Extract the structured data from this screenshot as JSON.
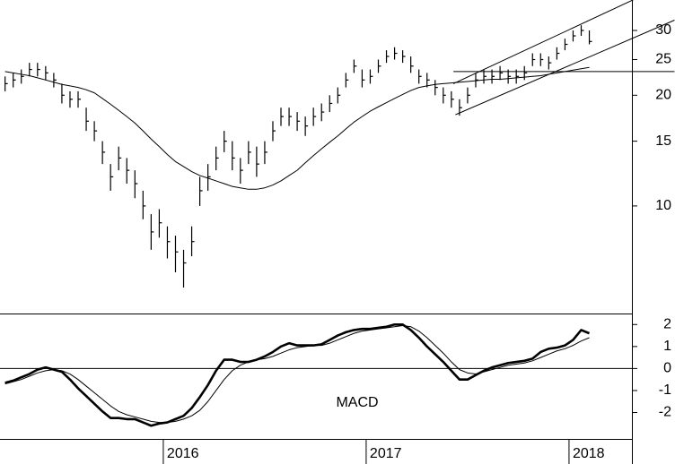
{
  "chart_data": [
    {
      "type": "ohlc",
      "color": "#000000",
      "log_scale": true,
      "xlim": [
        2015.195,
        2018.31
      ],
      "ylim": [
        5.1,
        36.3
      ],
      "yticks": [
        10,
        15,
        20,
        25,
        30
      ],
      "x": [
        2015.22,
        2015.26,
        2015.3,
        2015.34,
        2015.38,
        2015.42,
        2015.46,
        2015.5,
        2015.54,
        2015.58,
        2015.62,
        2015.66,
        2015.7,
        2015.74,
        2015.78,
        2015.82,
        2015.86,
        2015.9,
        2015.94,
        2015.98,
        2016.02,
        2016.06,
        2016.1,
        2016.14,
        2016.18,
        2016.22,
        2016.26,
        2016.3,
        2016.34,
        2016.38,
        2016.42,
        2016.46,
        2016.5,
        2016.54,
        2016.58,
        2016.62,
        2016.66,
        2016.7,
        2016.74,
        2016.78,
        2016.82,
        2016.86,
        2016.9,
        2016.94,
        2016.98,
        2017.02,
        2017.06,
        2017.1,
        2017.14,
        2017.18,
        2017.22,
        2017.26,
        2017.3,
        2017.34,
        2017.38,
        2017.42,
        2017.46,
        2017.5,
        2017.54,
        2017.58,
        2017.62,
        2017.66,
        2017.7,
        2017.74,
        2017.78,
        2017.82,
        2017.86,
        2017.9,
        2017.94,
        2017.98,
        2018.02,
        2018.06,
        2018.1
      ],
      "high": [
        22.5,
        23,
        23.5,
        24.5,
        24.5,
        24,
        23,
        21.5,
        20.5,
        20.5,
        18.5,
        17,
        15,
        13,
        14.5,
        13.5,
        12.5,
        11,
        9.5,
        9.8,
        8.8,
        8.3,
        7.6,
        8.8,
        12,
        13,
        14.5,
        16,
        15,
        13.5,
        15,
        14.5,
        15,
        17,
        18.5,
        18.5,
        18,
        17.5,
        18.5,
        19,
        20,
        21,
        23,
        25,
        23.5,
        23.5,
        25,
        26.5,
        27,
        26.5,
        25.5,
        23.5,
        23,
        22,
        21,
        20.5,
        19.5,
        21,
        23,
        23.5,
        23.5,
        24,
        23.5,
        23.5,
        24,
        26,
        26,
        25.5,
        27,
        28.5,
        30,
        31,
        30
      ],
      "low": [
        20.5,
        21,
        21.5,
        22.5,
        22.5,
        22,
        21,
        19,
        18.5,
        18.5,
        16,
        15,
        13,
        11,
        12.5,
        11.5,
        10.5,
        9.2,
        7.6,
        8.2,
        7.2,
        6.6,
        6.0,
        7.3,
        10,
        11,
        12.5,
        14,
        12.5,
        11.5,
        13,
        12,
        13,
        15,
        16.5,
        16.5,
        16,
        15.5,
        16.5,
        17,
        18,
        19,
        21,
        23,
        21,
        21.5,
        23,
        24.5,
        25,
        24.5,
        23,
        21.5,
        21,
        20,
        19,
        18.5,
        17.6,
        19,
        21,
        21.5,
        21.5,
        22,
        21.5,
        21.5,
        22,
        24,
        24,
        23.5,
        25,
        26.5,
        28,
        29,
        27.5
      ],
      "close": [
        21.5,
        22,
        22.5,
        23.5,
        23.5,
        23,
        22,
        20,
        19.5,
        19.5,
        17,
        16,
        14,
        12,
        13.5,
        12.5,
        11.5,
        10,
        8.5,
        9,
        8,
        7.5,
        7,
        8,
        11,
        12,
        13.5,
        15,
        13.5,
        12.5,
        14,
        13,
        14,
        16,
        17.5,
        17.5,
        17,
        16.5,
        17.5,
        18,
        19,
        20,
        22,
        24,
        22,
        22.5,
        24,
        25.5,
        26,
        25.5,
        24,
        22.5,
        22,
        21,
        20,
        19.5,
        18.5,
        20,
        22,
        22.5,
        22.5,
        23,
        22.5,
        22.5,
        23,
        25,
        25,
        24.5,
        26,
        27.5,
        29,
        30,
        28
      ],
      "moving_average": [
        23.2,
        23.0,
        22.8,
        22.6,
        22.3,
        22,
        21.7,
        21.4,
        21.2,
        21,
        20.7,
        20.3,
        19.6,
        18.9,
        18.2,
        17.5,
        16.8,
        16,
        15.2,
        14.5,
        13.8,
        13.2,
        12.8,
        12.4,
        12.1,
        11.9,
        11.7,
        11.5,
        11.3,
        11.2,
        11.1,
        11.1,
        11.2,
        11.4,
        11.7,
        12.1,
        12.5,
        13.1,
        13.7,
        14.3,
        14.9,
        15.5,
        16.2,
        16.9,
        17.5,
        18.1,
        18.6,
        19.1,
        19.6,
        20.1,
        20.6,
        21,
        21.2,
        21.4,
        21.5,
        21.6,
        21.7,
        21.8,
        21.9,
        22,
        22.1,
        22.1,
        22.2,
        22.3,
        22.4,
        22.5,
        22.6,
        22.8,
        23,
        23.2,
        23.4,
        23.6,
        23.8
      ],
      "trendlines": [
        {
          "x": [
            2017.43,
            2018.52
          ],
          "y": [
            21.5,
            41.0
          ]
        },
        {
          "x": [
            2017.44,
            2018.52
          ],
          "y": [
            17.7,
            32.0
          ]
        },
        {
          "x": [
            2017.43,
            2018.52
          ],
          "y": [
            23.2,
            23.2
          ]
        }
      ]
    },
    {
      "type": "line",
      "annotation": "MACD",
      "color": "#000000",
      "xlim": [
        2015.195,
        2018.31
      ],
      "xticks": [
        2016,
        2017,
        2018
      ],
      "ylim": [
        -3.2,
        2.5
      ],
      "yticks": [
        -2,
        -1,
        0,
        1,
        2
      ],
      "reference_lines": [
        0
      ],
      "x": [
        2015.22,
        2015.26,
        2015.3,
        2015.34,
        2015.38,
        2015.42,
        2015.46,
        2015.5,
        2015.54,
        2015.58,
        2015.62,
        2015.66,
        2015.7,
        2015.74,
        2015.78,
        2015.82,
        2015.86,
        2015.9,
        2015.94,
        2015.98,
        2016.02,
        2016.06,
        2016.1,
        2016.14,
        2016.18,
        2016.22,
        2016.26,
        2016.3,
        2016.34,
        2016.38,
        2016.42,
        2016.46,
        2016.5,
        2016.54,
        2016.58,
        2016.62,
        2016.66,
        2016.7,
        2016.74,
        2016.78,
        2016.82,
        2016.86,
        2016.9,
        2016.94,
        2016.98,
        2017.02,
        2017.06,
        2017.1,
        2017.14,
        2017.18,
        2017.22,
        2017.26,
        2017.3,
        2017.34,
        2017.38,
        2017.42,
        2017.46,
        2017.5,
        2017.54,
        2017.58,
        2017.62,
        2017.66,
        2017.7,
        2017.74,
        2017.78,
        2017.82,
        2017.86,
        2017.9,
        2017.94,
        2017.98,
        2018.02,
        2018.06,
        2018.1
      ],
      "series": [
        {
          "width": 2.6,
          "values": [
            -0.65,
            -0.55,
            -0.4,
            -0.25,
            -0.05,
            0.05,
            -0.05,
            -0.15,
            -0.5,
            -0.9,
            -1.25,
            -1.6,
            -1.95,
            -2.25,
            -2.25,
            -2.3,
            -2.3,
            -2.45,
            -2.6,
            -2.5,
            -2.45,
            -2.3,
            -2.15,
            -1.8,
            -1.3,
            -0.75,
            -0.1,
            0.4,
            0.4,
            0.3,
            0.3,
            0.4,
            0.55,
            0.75,
            1.0,
            1.15,
            1.05,
            1.05,
            1.05,
            1.1,
            1.3,
            1.5,
            1.65,
            1.75,
            1.8,
            1.8,
            1.85,
            1.9,
            2.0,
            2.0,
            1.75,
            1.4,
            1.0,
            0.65,
            0.3,
            -0.1,
            -0.5,
            -0.5,
            -0.3,
            -0.1,
            0.05,
            0.15,
            0.25,
            0.3,
            0.35,
            0.45,
            0.75,
            0.9,
            0.95,
            1.05,
            1.3,
            1.75,
            1.6
          ]
        },
        {
          "width": 1,
          "values": [
            -0.7,
            -0.6,
            -0.5,
            -0.35,
            -0.2,
            -0.1,
            -0.05,
            -0.1,
            -0.25,
            -0.5,
            -0.8,
            -1.1,
            -1.4,
            -1.7,
            -1.95,
            -2.1,
            -2.2,
            -2.3,
            -2.4,
            -2.45,
            -2.45,
            -2.4,
            -2.3,
            -2.15,
            -1.9,
            -1.5,
            -1.0,
            -0.5,
            -0.1,
            0.15,
            0.3,
            0.4,
            0.45,
            0.55,
            0.7,
            0.85,
            0.95,
            1.0,
            1.05,
            1.05,
            1.15,
            1.3,
            1.45,
            1.6,
            1.7,
            1.75,
            1.8,
            1.85,
            1.9,
            1.95,
            1.9,
            1.7,
            1.4,
            1.05,
            0.7,
            0.3,
            -0.05,
            -0.2,
            -0.25,
            -0.15,
            -0.05,
            0.05,
            0.15,
            0.2,
            0.25,
            0.35,
            0.5,
            0.65,
            0.8,
            0.9,
            1.05,
            1.25,
            1.4
          ]
        }
      ]
    }
  ]
}
